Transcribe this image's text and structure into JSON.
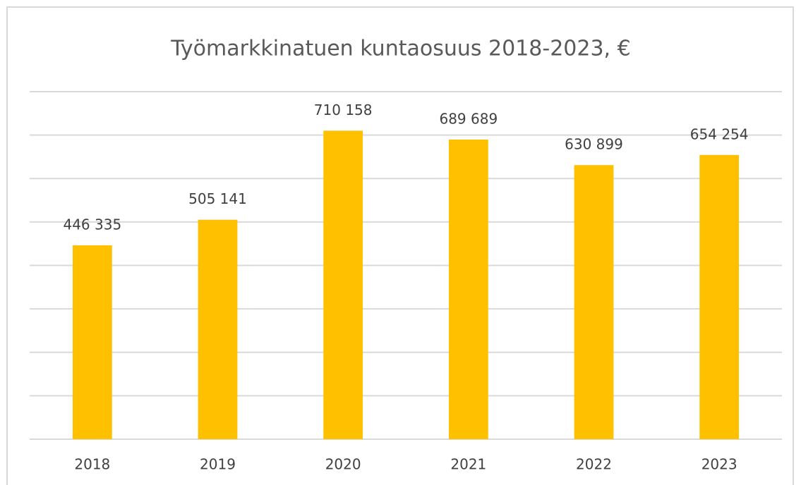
{
  "chart_data": {
    "type": "bar",
    "title": "Työmarkkinatuen kuntaosuus 2018-2023, €",
    "categories": [
      "2018",
      "2019",
      "2020",
      "2021",
      "2022",
      "2023"
    ],
    "values": [
      446335,
      505141,
      710158,
      689689,
      630899,
      654254
    ],
    "value_labels": [
      "446 335",
      "505 141",
      "710 158",
      "689 689",
      "630 899",
      "654 254"
    ],
    "color": "#ffc000",
    "ylim": [
      0,
      800000
    ],
    "yticks": [
      0,
      100000,
      200000,
      300000,
      400000,
      500000,
      600000,
      700000,
      800000
    ],
    "grid": true
  }
}
